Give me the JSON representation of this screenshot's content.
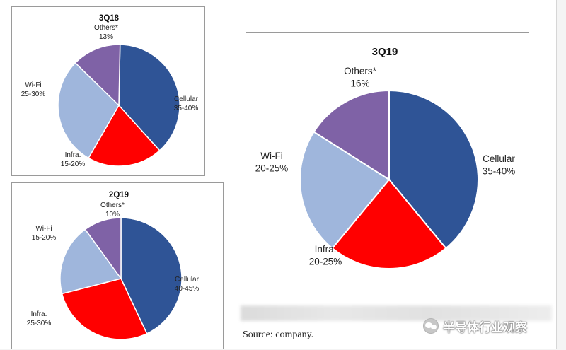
{
  "charts": [
    {
      "title": "3Q18",
      "slices": [
        {
          "label": "Cellular",
          "value_text": "35-40%",
          "value": 38,
          "color": "#2f5496"
        },
        {
          "label": "Infra.",
          "value_text": "15-20%",
          "value": 20,
          "color": "#ff0000"
        },
        {
          "label": "Wi-Fi",
          "value_text": "25-30%",
          "value": 29,
          "color": "#9fb6dc"
        },
        {
          "label": "Others*",
          "value_text": "13%",
          "value": 13,
          "color": "#7f62a6"
        }
      ]
    },
    {
      "title": "2Q19",
      "slices": [
        {
          "label": "Cellular",
          "value_text": "40-45%",
          "value": 43,
          "color": "#2f5496"
        },
        {
          "label": "Infra.",
          "value_text": "25-30%",
          "value": 28,
          "color": "#ff0000"
        },
        {
          "label": "Wi-Fi",
          "value_text": "15-20%",
          "value": 19,
          "color": "#9fb6dc"
        },
        {
          "label": "Others*",
          "value_text": "10%",
          "value": 10,
          "color": "#7f62a6"
        }
      ]
    },
    {
      "title": "3Q19",
      "slices": [
        {
          "label": "Cellular",
          "value_text": "35-40%",
          "value": 39,
          "color": "#2f5496"
        },
        {
          "label": "Infra.",
          "value_text": "20-25%",
          "value": 22,
          "color": "#ff0000"
        },
        {
          "label": "Wi-Fi",
          "value_text": "20-25%",
          "value": 23,
          "color": "#9fb6dc"
        },
        {
          "label": "Others*",
          "value_text": "16%",
          "value": 16,
          "color": "#7f62a6"
        }
      ]
    }
  ],
  "chart_data": [
    {
      "type": "pie",
      "title": "3Q18",
      "categories": [
        "Cellular",
        "Infra.",
        "Wi-Fi",
        "Others*"
      ],
      "values": [
        38,
        20,
        29,
        13
      ],
      "data_labels": [
        "35-40%",
        "15-20%",
        "25-30%",
        "13%"
      ]
    },
    {
      "type": "pie",
      "title": "2Q19",
      "categories": [
        "Cellular",
        "Infra.",
        "Wi-Fi",
        "Others*"
      ],
      "values": [
        43,
        28,
        19,
        10
      ],
      "data_labels": [
        "40-45%",
        "25-30%",
        "15-20%",
        "10%"
      ]
    },
    {
      "type": "pie",
      "title": "3Q19",
      "categories": [
        "Cellular",
        "Infra.",
        "Wi-Fi",
        "Others*"
      ],
      "values": [
        39,
        22,
        23,
        16
      ],
      "data_labels": [
        "35-40%",
        "20-25%",
        "20-25%",
        "16%"
      ]
    }
  ],
  "source": "Source: company.",
  "watermark": "半导体行业观察"
}
